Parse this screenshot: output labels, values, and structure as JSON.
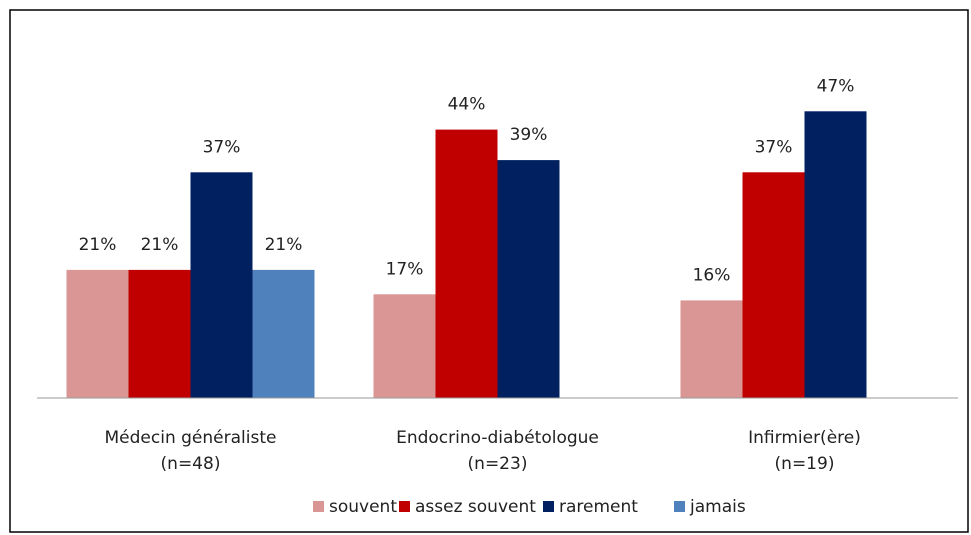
{
  "chart_data": {
    "type": "bar",
    "categories": [
      [
        "Médecin généraliste",
        "(n=48)"
      ],
      [
        "Endocrino-diabétologue",
        "(n=23)"
      ],
      [
        "Infirmier(ère)",
        "(n=19)"
      ]
    ],
    "series": [
      {
        "name": "souvent",
        "color": "#d99694",
        "values": [
          21,
          17,
          16
        ],
        "value_labels": [
          "21%",
          "17%",
          "16%"
        ]
      },
      {
        "name": "assez souvent",
        "color": "#c00000",
        "values": [
          21,
          44,
          37
        ],
        "value_labels": [
          "21%",
          "44%",
          "37%"
        ]
      },
      {
        "name": "rarement",
        "color": "#002060",
        "values": [
          37,
          39,
          47
        ],
        "value_labels": [
          "37%",
          "39%",
          "47%"
        ]
      },
      {
        "name": "jamais",
        "color": "#4f81bd",
        "values": [
          21,
          null,
          null
        ],
        "value_labels": [
          "21%",
          null,
          null
        ]
      }
    ],
    "ylim": [
      0,
      50
    ],
    "legend": "bottom"
  }
}
